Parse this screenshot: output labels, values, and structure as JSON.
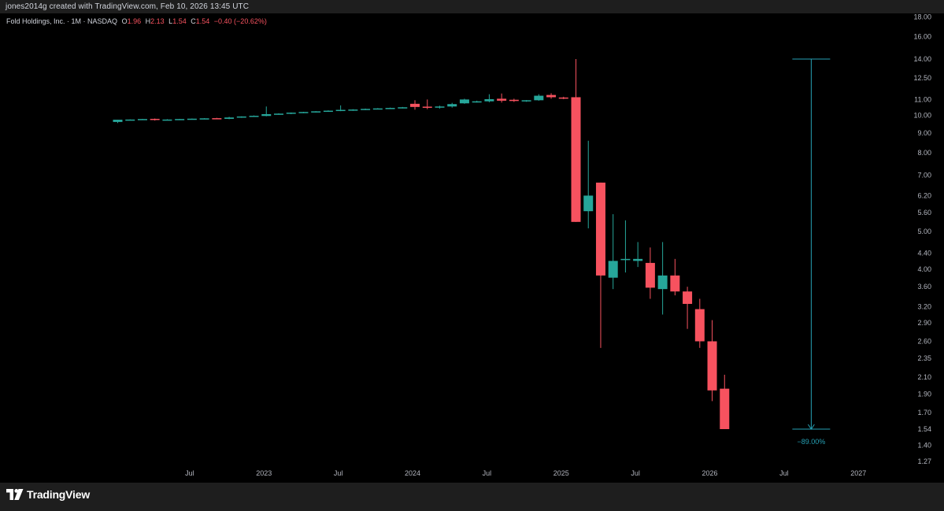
{
  "header": {
    "credit": "jones2014g created with TradingView.com, Feb 10, 2026 13:45 UTC"
  },
  "legend": {
    "symbol": "Fold Holdings, Inc. · 1M · NASDAQ",
    "o_label": "O",
    "o_value": "1.96",
    "h_label": "H",
    "h_value": "2.13",
    "l_label": "L",
    "l_value": "1.54",
    "c_label": "C",
    "c_value": "1.54",
    "change": "−0.40 (−20.62%)"
  },
  "footer": {
    "brand": "TradingView"
  },
  "colors": {
    "up": "#26a69a",
    "down": "#f7525f",
    "measure": "#26a0b4",
    "axis_text": "#b2b5be",
    "background": "#000000"
  },
  "chart_data": {
    "type": "candlestick",
    "timeframe": "1M",
    "y_scale": "log",
    "y_ticks": [
      "18.00",
      "16.00",
      "14.00",
      "12.50",
      "11.00",
      "10.00",
      "9.00",
      "8.00",
      "7.00",
      "6.20",
      "5.60",
      "5.00",
      "4.40",
      "4.00",
      "3.60",
      "3.20",
      "2.90",
      "2.60",
      "2.35",
      "2.10",
      "1.90",
      "1.70",
      "1.54",
      "1.40",
      "1.27"
    ],
    "x_ticks": [
      {
        "label": "Jul",
        "date": "2022-07"
      },
      {
        "label": "2023",
        "date": "2023-01"
      },
      {
        "label": "Jul",
        "date": "2023-07"
      },
      {
        "label": "2024",
        "date": "2024-01"
      },
      {
        "label": "Jul",
        "date": "2024-07"
      },
      {
        "label": "2025",
        "date": "2025-01"
      },
      {
        "label": "Jul",
        "date": "2025-07"
      },
      {
        "label": "2026",
        "date": "2026-01"
      },
      {
        "label": "Jul",
        "date": "2026-07"
      },
      {
        "label": "2027",
        "date": "2027-01"
      }
    ],
    "candles": [
      {
        "date": "2022-01",
        "o": 9.62,
        "h": 9.75,
        "l": 9.56,
        "c": 9.75
      },
      {
        "date": "2022-02",
        "o": 9.75,
        "h": 9.77,
        "l": 9.72,
        "c": 9.76
      },
      {
        "date": "2022-03",
        "o": 9.76,
        "h": 9.8,
        "l": 9.74,
        "c": 9.79
      },
      {
        "date": "2022-04",
        "o": 9.8,
        "h": 9.82,
        "l": 9.7,
        "c": 9.74
      },
      {
        "date": "2022-05",
        "o": 9.75,
        "h": 9.78,
        "l": 9.72,
        "c": 9.76
      },
      {
        "date": "2022-06",
        "o": 9.76,
        "h": 9.8,
        "l": 9.74,
        "c": 9.79
      },
      {
        "date": "2022-07",
        "o": 9.79,
        "h": 9.82,
        "l": 9.77,
        "c": 9.81
      },
      {
        "date": "2022-08",
        "o": 9.81,
        "h": 9.84,
        "l": 9.79,
        "c": 9.83
      },
      {
        "date": "2022-09",
        "o": 9.84,
        "h": 9.86,
        "l": 9.78,
        "c": 9.8
      },
      {
        "date": "2022-10",
        "o": 9.8,
        "h": 9.92,
        "l": 9.78,
        "c": 9.88
      },
      {
        "date": "2022-11",
        "o": 9.88,
        "h": 9.95,
        "l": 9.86,
        "c": 9.94
      },
      {
        "date": "2022-12",
        "o": 9.94,
        "h": 10.0,
        "l": 9.92,
        "c": 9.98
      },
      {
        "date": "2023-01",
        "o": 9.97,
        "h": 10.55,
        "l": 9.95,
        "c": 10.08
      },
      {
        "date": "2023-02",
        "o": 10.08,
        "h": 10.13,
        "l": 10.05,
        "c": 10.11
      },
      {
        "date": "2023-03",
        "o": 10.11,
        "h": 10.18,
        "l": 10.08,
        "c": 10.17
      },
      {
        "date": "2023-04",
        "o": 10.17,
        "h": 10.22,
        "l": 10.14,
        "c": 10.21
      },
      {
        "date": "2023-05",
        "o": 10.21,
        "h": 10.26,
        "l": 10.18,
        "c": 10.25
      },
      {
        "date": "2023-06",
        "o": 10.25,
        "h": 10.31,
        "l": 10.22,
        "c": 10.29
      },
      {
        "date": "2023-07",
        "o": 10.29,
        "h": 10.62,
        "l": 10.26,
        "c": 10.34
      },
      {
        "date": "2023-08",
        "o": 10.34,
        "h": 10.38,
        "l": 10.28,
        "c": 10.36
      },
      {
        "date": "2023-09",
        "o": 10.36,
        "h": 10.42,
        "l": 10.33,
        "c": 10.4
      },
      {
        "date": "2023-10",
        "o": 10.4,
        "h": 10.45,
        "l": 10.37,
        "c": 10.43
      },
      {
        "date": "2023-11",
        "o": 10.43,
        "h": 10.48,
        "l": 10.4,
        "c": 10.46
      },
      {
        "date": "2023-12",
        "o": 10.46,
        "h": 10.52,
        "l": 10.43,
        "c": 10.5
      },
      {
        "date": "2024-01",
        "o": 10.72,
        "h": 10.95,
        "l": 10.35,
        "c": 10.52
      },
      {
        "date": "2024-02",
        "o": 10.54,
        "h": 11.0,
        "l": 10.38,
        "c": 10.48
      },
      {
        "date": "2024-03",
        "o": 10.48,
        "h": 10.6,
        "l": 10.42,
        "c": 10.55
      },
      {
        "date": "2024-04",
        "o": 10.55,
        "h": 10.78,
        "l": 10.48,
        "c": 10.7
      },
      {
        "date": "2024-05",
        "o": 10.75,
        "h": 11.05,
        "l": 10.72,
        "c": 11.0
      },
      {
        "date": "2024-06",
        "o": 10.85,
        "h": 10.92,
        "l": 10.8,
        "c": 10.88
      },
      {
        "date": "2024-07",
        "o": 10.88,
        "h": 11.35,
        "l": 10.82,
        "c": 11.02
      },
      {
        "date": "2024-08",
        "o": 11.05,
        "h": 11.4,
        "l": 10.8,
        "c": 10.92
      },
      {
        "date": "2024-09",
        "o": 10.98,
        "h": 11.05,
        "l": 10.84,
        "c": 10.9
      },
      {
        "date": "2024-10",
        "o": 10.9,
        "h": 10.96,
        "l": 10.85,
        "c": 10.95
      },
      {
        "date": "2024-11",
        "o": 10.95,
        "h": 11.35,
        "l": 10.92,
        "c": 11.25
      },
      {
        "date": "2024-12",
        "o": 11.3,
        "h": 11.42,
        "l": 11.05,
        "c": 11.15
      },
      {
        "date": "2025-01",
        "o": 11.13,
        "h": 11.18,
        "l": 11.02,
        "c": 11.1
      },
      {
        "date": "2025-02",
        "o": 11.15,
        "h": 14.0,
        "l": 5.3,
        "c": 5.3
      },
      {
        "date": "2025-03",
        "o": 5.65,
        "h": 8.6,
        "l": 5.1,
        "c": 6.2
      },
      {
        "date": "2025-04",
        "o": 6.7,
        "h": 6.7,
        "l": 2.5,
        "c": 3.85
      },
      {
        "date": "2025-05",
        "o": 3.8,
        "h": 5.55,
        "l": 3.55,
        "c": 4.2
      },
      {
        "date": "2025-06",
        "o": 4.22,
        "h": 5.35,
        "l": 3.92,
        "c": 4.25
      },
      {
        "date": "2025-07",
        "o": 4.2,
        "h": 4.7,
        "l": 4.05,
        "c": 4.25
      },
      {
        "date": "2025-08",
        "o": 4.15,
        "h": 4.55,
        "l": 3.35,
        "c": 3.58
      },
      {
        "date": "2025-09",
        "o": 3.55,
        "h": 4.7,
        "l": 3.05,
        "c": 3.85
      },
      {
        "date": "2025-10",
        "o": 3.85,
        "h": 4.25,
        "l": 3.42,
        "c": 3.5
      },
      {
        "date": "2025-11",
        "o": 3.5,
        "h": 3.6,
        "l": 2.8,
        "c": 3.25
      },
      {
        "date": "2025-12",
        "o": 3.15,
        "h": 3.35,
        "l": 2.5,
        "c": 2.6
      },
      {
        "date": "2026-01",
        "o": 2.6,
        "h": 2.95,
        "l": 1.82,
        "c": 1.94
      },
      {
        "date": "2026-02",
        "o": 1.96,
        "h": 2.13,
        "l": 1.54,
        "c": 1.54
      }
    ],
    "price_range_measure": {
      "from_date": "2026-09",
      "from": 14.0,
      "to": 1.54,
      "label": "−89.00%"
    }
  }
}
